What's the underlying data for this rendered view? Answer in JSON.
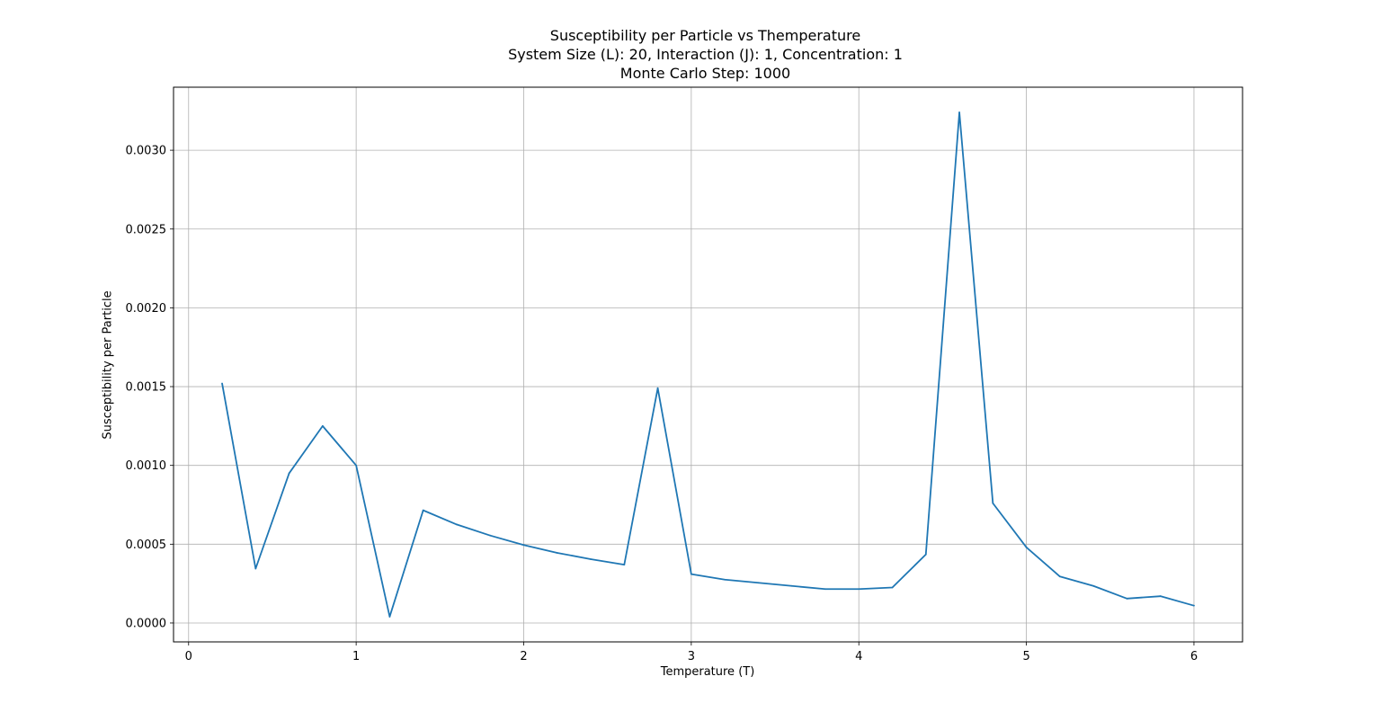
{
  "chart_data": {
    "type": "line",
    "title_lines": [
      "Susceptibility per Particle vs Themperature",
      "System Size (L): 20, Interaction (J): 1, Concentration: 1",
      "Monte Carlo Step: 1000"
    ],
    "xlabel": "Temperature (T)",
    "ylabel": "Susceptibility per Particle",
    "xlim": [
      -0.09,
      6.29
    ],
    "ylim": [
      -0.00012,
      0.0034
    ],
    "xticks": [
      0,
      1,
      2,
      3,
      4,
      5,
      6
    ],
    "xtick_labels": [
      "0",
      "1",
      "2",
      "3",
      "4",
      "5",
      "6"
    ],
    "yticks": [
      0.0,
      0.0005,
      0.001,
      0.0015,
      0.002,
      0.0025,
      0.003
    ],
    "ytick_labels": [
      "0.0000",
      "0.0005",
      "0.0010",
      "0.0015",
      "0.0020",
      "0.0025",
      "0.0030"
    ],
    "grid": true,
    "line_color": "#1f77b4",
    "series": [
      {
        "x": [
          0.2,
          0.4,
          0.6,
          0.8,
          1.0,
          1.2,
          1.4,
          1.6,
          1.8,
          2.0,
          2.2,
          2.4,
          2.6,
          2.8,
          3.0,
          3.2,
          3.4,
          3.6,
          3.8,
          4.0,
          4.2,
          4.4,
          4.6,
          4.8,
          5.0,
          5.2,
          5.4,
          5.6,
          5.8,
          6.0
        ],
        "values": [
          0.00152,
          0.000345,
          0.00095,
          0.00125,
          0.001,
          4e-05,
          0.000715,
          0.000625,
          0.000555,
          0.000495,
          0.000445,
          0.000405,
          0.00037,
          0.00149,
          0.00031,
          0.000275,
          0.000255,
          0.000235,
          0.000215,
          0.000215,
          0.000225,
          0.000435,
          0.00324,
          0.00076,
          0.00048,
          0.000295,
          0.000235,
          0.000155,
          0.00017,
          0.00011
        ]
      }
    ]
  }
}
